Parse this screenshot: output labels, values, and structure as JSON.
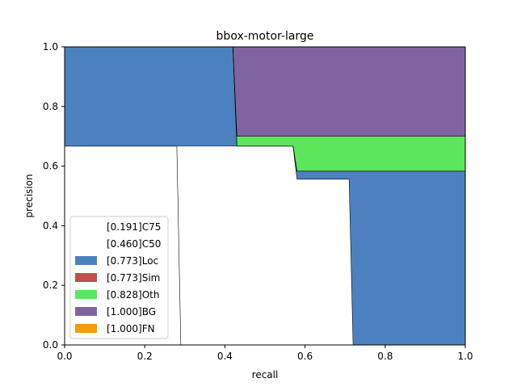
{
  "chart_data": {
    "type": "area",
    "title": "bbox-motor-large",
    "xlabel": "recall",
    "ylabel": "precision",
    "xlim": [
      0,
      1
    ],
    "ylim": [
      0,
      1
    ],
    "xticks": [
      "0.0",
      "0.2",
      "0.4",
      "0.6",
      "0.8",
      "1.0"
    ],
    "yticks": [
      "0.0",
      "0.2",
      "0.4",
      "0.6",
      "0.8",
      "1.0"
    ],
    "grid": false,
    "legend_position": "lower-left",
    "series": [
      {
        "name": "[0.191]C75",
        "color": "#ffffff",
        "recall": [
          0.0,
          0.28,
          0.29,
          0.29
        ],
        "precision": [
          0.667,
          0.667,
          0.0,
          0.0
        ]
      },
      {
        "name": "[0.460]C50",
        "color": "#ffffff",
        "recall": [
          0.0,
          0.57,
          0.58,
          0.71,
          0.72,
          0.72
        ],
        "precision": [
          0.667,
          0.667,
          0.556,
          0.556,
          0.0,
          0.0
        ]
      },
      {
        "name": "[0.773]Loc",
        "color": "#4c81bf",
        "recall": [
          0.0,
          0.42,
          0.43,
          0.57,
          0.58,
          1.0
        ],
        "precision": [
          1.0,
          1.0,
          0.667,
          0.667,
          0.583,
          0.583
        ]
      },
      {
        "name": "[0.773]Sim",
        "color": "#c0504d",
        "recall": [
          0.0,
          0.42,
          0.43,
          0.57,
          0.58,
          1.0
        ],
        "precision": [
          1.0,
          1.0,
          0.667,
          0.667,
          0.583,
          0.583
        ]
      },
      {
        "name": "[0.828]Oth",
        "color": "#5ce65c",
        "recall": [
          0.0,
          0.42,
          0.43,
          1.0
        ],
        "precision": [
          1.0,
          1.0,
          0.7,
          0.7
        ]
      },
      {
        "name": "[1.000]BG",
        "color": "#8064a2",
        "recall": [
          0.0,
          1.0
        ],
        "precision": [
          1.0,
          1.0
        ]
      },
      {
        "name": "[1.000]FN",
        "color": "#f79a0d",
        "recall": [
          0.0,
          1.0
        ],
        "precision": [
          1.0,
          1.0
        ]
      }
    ]
  }
}
